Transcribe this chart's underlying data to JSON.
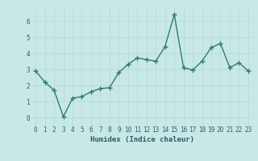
{
  "x": [
    0,
    1,
    2,
    3,
    4,
    5,
    6,
    7,
    8,
    9,
    10,
    11,
    12,
    13,
    14,
    15,
    16,
    17,
    18,
    19,
    20,
    21,
    22,
    23
  ],
  "y": [
    2.9,
    2.2,
    1.7,
    0.05,
    1.2,
    1.3,
    1.6,
    1.8,
    1.85,
    2.8,
    3.3,
    3.7,
    3.6,
    3.5,
    4.4,
    6.4,
    3.1,
    2.95,
    3.5,
    4.35,
    4.6,
    3.1,
    3.4,
    2.9
  ],
  "xlabel": "Humidex (Indice chaleur)",
  "xlim": [
    -0.5,
    23.5
  ],
  "ylim": [
    -0.5,
    7.0
  ],
  "yticks": [
    0,
    1,
    2,
    3,
    4,
    5,
    6
  ],
  "xticks": [
    0,
    1,
    2,
    3,
    4,
    5,
    6,
    7,
    8,
    9,
    10,
    11,
    12,
    13,
    14,
    15,
    16,
    17,
    18,
    19,
    20,
    21,
    22,
    23
  ],
  "line_color": "#2d7d6e",
  "marker": "+",
  "background_color": "#c8e8e8",
  "grid_color": "#b8d8d8",
  "axis_bg": "#c8e8e8",
  "tick_color": "#2d6060",
  "xlabel_color": "#2d5a5a",
  "label_fontsize": 6.5,
  "tick_fontsize": 5.5,
  "linewidth": 1.0,
  "markersize": 4,
  "markeredgewidth": 1.0
}
